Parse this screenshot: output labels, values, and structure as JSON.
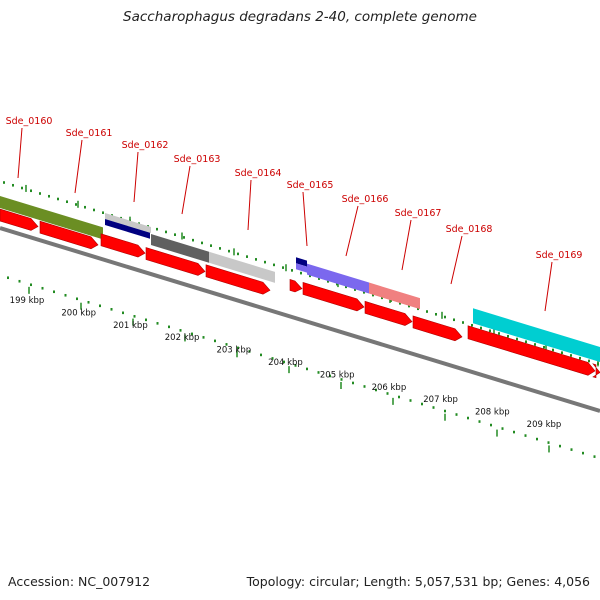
{
  "title": "Saccharophagus degradans 2-40, complete genome",
  "footer": {
    "accession": "Accession: NC_007912",
    "summary": "Topology: circular; Length: 5,057,531 bp; Genes: 4,056"
  },
  "colors": {
    "label": "#cc0000",
    "cds_arrow": "#ff0000",
    "tick": "#228b22",
    "backbone": "#777777"
  },
  "gene_labels": [
    "Sde_0160",
    "Sde_0161",
    "Sde_0162",
    "Sde_0163",
    "Sde_0164",
    "Sde_0165",
    "Sde_0166",
    "Sde_0167",
    "Sde_0168",
    "Sde_0169"
  ],
  "feature_colors": {
    "Sde_0160": "#6b8e23",
    "Sde_0161": "#c8c8c8",
    "Sde_0162": "#000080",
    "Sde_0163": "#606060",
    "Sde_0164": "#c8c8c8",
    "Sde_0165": "#000080",
    "Sde_0166": "#7b68ee",
    "Sde_0167": "#f08080",
    "Sde_0169": "#00ced1"
  },
  "scale_labels": [
    "199 kbp",
    "200 kbp",
    "201 kbp",
    "202 kbp",
    "203 kbp",
    "204 kbp",
    "205 kbp",
    "206 kbp",
    "207 kbp",
    "208 kbp",
    "209 kbp"
  ]
}
